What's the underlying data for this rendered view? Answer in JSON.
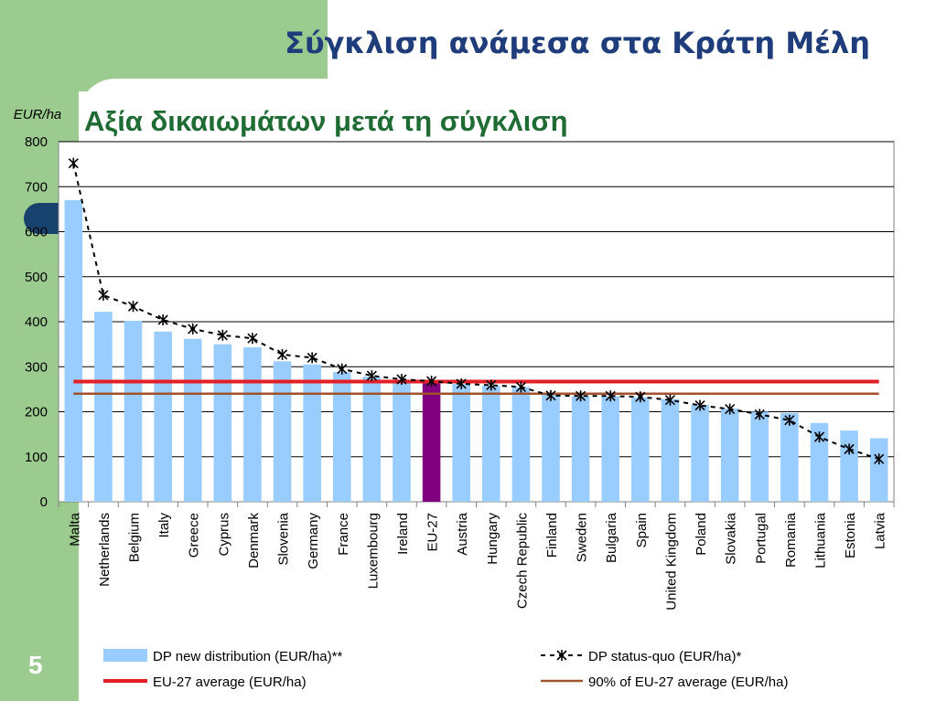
{
  "slide": {
    "title": "Σύγκλιση ανάμεσα στα Κράτη Μέλη",
    "number": "5"
  },
  "colors": {
    "background_green": "#9bcb8f",
    "title_blue": "#1f3d7a",
    "subtitle_green": "#1e6b33",
    "bar_blue": "#99ccff",
    "bar_highlight": "#800080",
    "eu_average_line": "#e31e24",
    "ninety_pct_line": "#a0522d"
  },
  "chart_data": {
    "type": "bar",
    "title": "Αξία δικαιωμάτων μετά τη σύγκλιση",
    "ylabel": "EUR/ha",
    "ylim": [
      0,
      800
    ],
    "yticks": [
      0,
      100,
      200,
      300,
      400,
      500,
      600,
      700,
      800
    ],
    "grid": true,
    "legend_position": "bottom",
    "categories": [
      "Malta",
      "Netherlands",
      "Belgium",
      "Italy",
      "Greece",
      "Cyprus",
      "Denmark",
      "Slovenia",
      "Germany",
      "France",
      "Luxembourg",
      "Ireland",
      "EU-27",
      "Austria",
      "Hungary",
      "Czech Republic",
      "Finland",
      "Sweden",
      "Bulgaria",
      "Spain",
      "United Kingdom",
      "Poland",
      "Slovakia",
      "Portugal",
      "Romania",
      "Lithuania",
      "Estonia",
      "Latvia"
    ],
    "highlight_category": "EU-27",
    "series": [
      {
        "name": "DP new distribution (EUR/ha)**",
        "kind": "bar",
        "values": [
          670,
          422,
          402,
          378,
          362,
          350,
          343,
          312,
          305,
          288,
          278,
          270,
          265,
          262,
          258,
          255,
          238,
          234,
          234,
          232,
          228,
          215,
          207,
          200,
          197,
          175,
          158,
          141
        ]
      },
      {
        "name": "DP status-quo (EUR/ha)*",
        "kind": "line",
        "values": [
          752,
          459,
          434,
          404,
          384,
          370,
          363,
          327,
          320,
          295,
          280,
          272,
          268,
          262,
          259,
          255,
          236,
          235,
          235,
          233,
          226,
          214,
          206,
          194,
          181,
          144,
          117,
          95
        ]
      },
      {
        "name": "EU-27 average (EUR/ha)",
        "kind": "hline",
        "value": 267
      },
      {
        "name": "90% of EU-27 average (EUR/ha)",
        "kind": "hline",
        "value": 240
      }
    ]
  }
}
